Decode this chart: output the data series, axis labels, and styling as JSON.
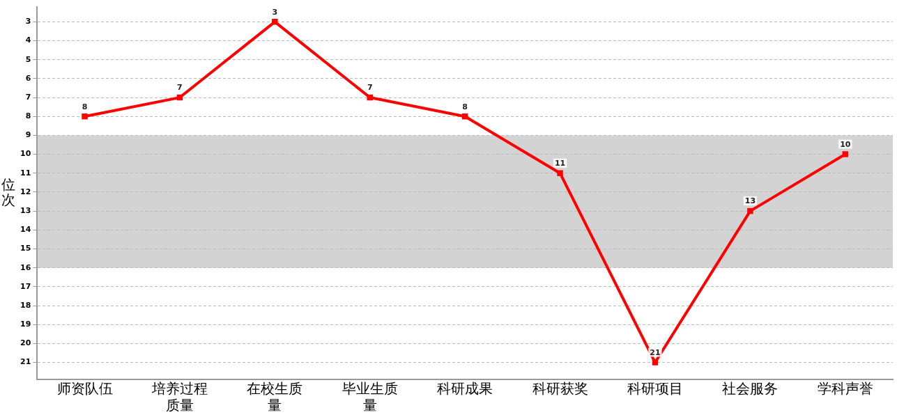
{
  "chart_data": {
    "type": "line",
    "ylabel": "位次",
    "categories": [
      "师资队伍",
      "培养过程质量",
      "在校生质量",
      "毕业生质量",
      "科研成果",
      "科研获奖",
      "科研项目",
      "社会服务",
      "学科声誉"
    ],
    "series": [
      {
        "color": "#ff0000",
        "values": [
          8,
          7,
          3,
          7,
          8,
          11,
          21,
          13,
          10
        ]
      }
    ],
    "ylim": [
      21.9,
      2.2
    ],
    "yticks": [
      3,
      4,
      5,
      6,
      7,
      8,
      9,
      10,
      11,
      12,
      13,
      14,
      15,
      16,
      17,
      18,
      19,
      20,
      21
    ],
    "bands": [
      {
        "axis": "y",
        "from": 9,
        "to": 16,
        "color": "#d3d3d3"
      }
    ],
    "grid": "y",
    "legend": false,
    "marker": "square",
    "line_style": "solid",
    "data_labels": true
  }
}
